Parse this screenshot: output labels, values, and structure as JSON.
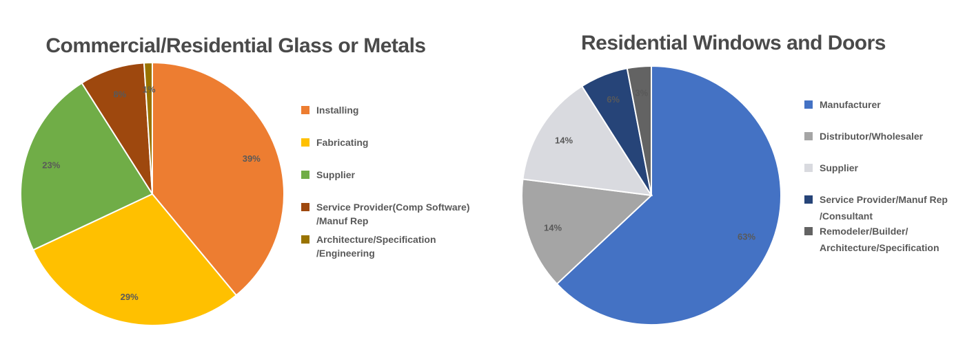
{
  "chart_data": [
    {
      "type": "pie",
      "title": "Commercial/Residential Glass or Metals",
      "slices": [
        {
          "label": "Installing",
          "legend_lines": [
            "Installing"
          ],
          "value": 39,
          "data_label": "39%",
          "color": "#ED7D31"
        },
        {
          "label": "Fabricating",
          "legend_lines": [
            "Fabricating"
          ],
          "value": 29,
          "data_label": "29%",
          "color": "#FFC000"
        },
        {
          "label": "Supplier",
          "legend_lines": [
            "Supplier"
          ],
          "value": 23,
          "data_label": "23%",
          "color": "#70AD47"
        },
        {
          "label": "Service Provider(Comp Software)/Manuf Rep",
          "legend_lines": [
            "Service Provider(Comp Software)",
            "/Manuf Rep"
          ],
          "value": 8,
          "data_label": "8%",
          "color": "#9E480E"
        },
        {
          "label": "Architecture/Specification/Engineering",
          "legend_lines": [
            "Architecture/Specification",
            "/Engineering"
          ],
          "value": 1,
          "data_label": "1%",
          "color": "#997300"
        }
      ],
      "legend_position": "right"
    },
    {
      "type": "pie",
      "title": "Residential Windows and Doors",
      "slices": [
        {
          "label": "Manufacturer",
          "legend_lines": [
            "Manufacturer"
          ],
          "value": 63,
          "data_label": "63%",
          "color": "#4472C4"
        },
        {
          "label": "Distributor/Wholesaler",
          "legend_lines": [
            "Distributor/Wholesaler"
          ],
          "value": 14,
          "data_label": "14%",
          "color": "#A5A5A5"
        },
        {
          "label": "Supplier",
          "legend_lines": [
            "Supplier"
          ],
          "value": 14,
          "data_label": "14%",
          "color": "#D9DADF"
        },
        {
          "label": "Service Provider/Manuf Rep/Consultant",
          "legend_lines": [
            "Service Provider/Manuf Rep",
            "/Consultant"
          ],
          "value": 6,
          "data_label": "6%",
          "color": "#264478"
        },
        {
          "label": "Remodeler/Builder/Architecture/Specification",
          "legend_lines": [
            "Remodeler/Builder/",
            "Architecture/Specification"
          ],
          "value": 3,
          "data_label": "3%",
          "color": "#636363"
        }
      ],
      "legend_position": "right"
    }
  ]
}
